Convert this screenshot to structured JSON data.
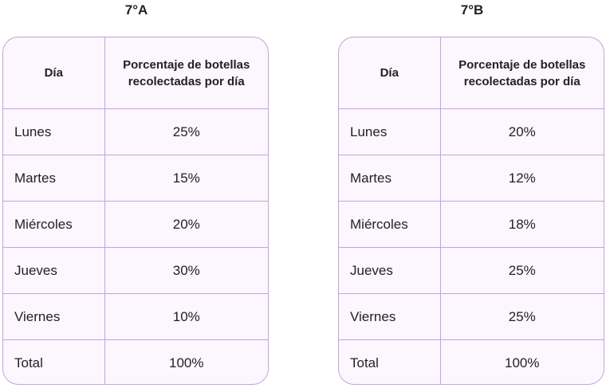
{
  "tables": [
    {
      "title": "7°A",
      "header": {
        "day": "Día",
        "percentage": "Porcentaje de botellas recolectadas por día"
      },
      "rows": [
        {
          "day": "Lunes",
          "value": "25%"
        },
        {
          "day": "Martes",
          "value": "15%"
        },
        {
          "day": "Miércoles",
          "value": "20%"
        },
        {
          "day": "Jueves",
          "value": "30%"
        },
        {
          "day": "Viernes",
          "value": "10%"
        },
        {
          "day": "Total",
          "value": "100%"
        }
      ]
    },
    {
      "title": "7°B",
      "header": {
        "day": "Día",
        "percentage": "Porcentaje de botellas recolectadas por día"
      },
      "rows": [
        {
          "day": "Lunes",
          "value": "20%"
        },
        {
          "day": "Martes",
          "value": "12%"
        },
        {
          "day": "Miércoles",
          "value": "18%"
        },
        {
          "day": "Jueves",
          "value": "25%"
        },
        {
          "day": "Viernes",
          "value": "25%"
        },
        {
          "day": "Total",
          "value": "100%"
        }
      ]
    }
  ],
  "colors": {
    "border": "#c9a0dc",
    "cell_background": "#fcf6fe"
  }
}
